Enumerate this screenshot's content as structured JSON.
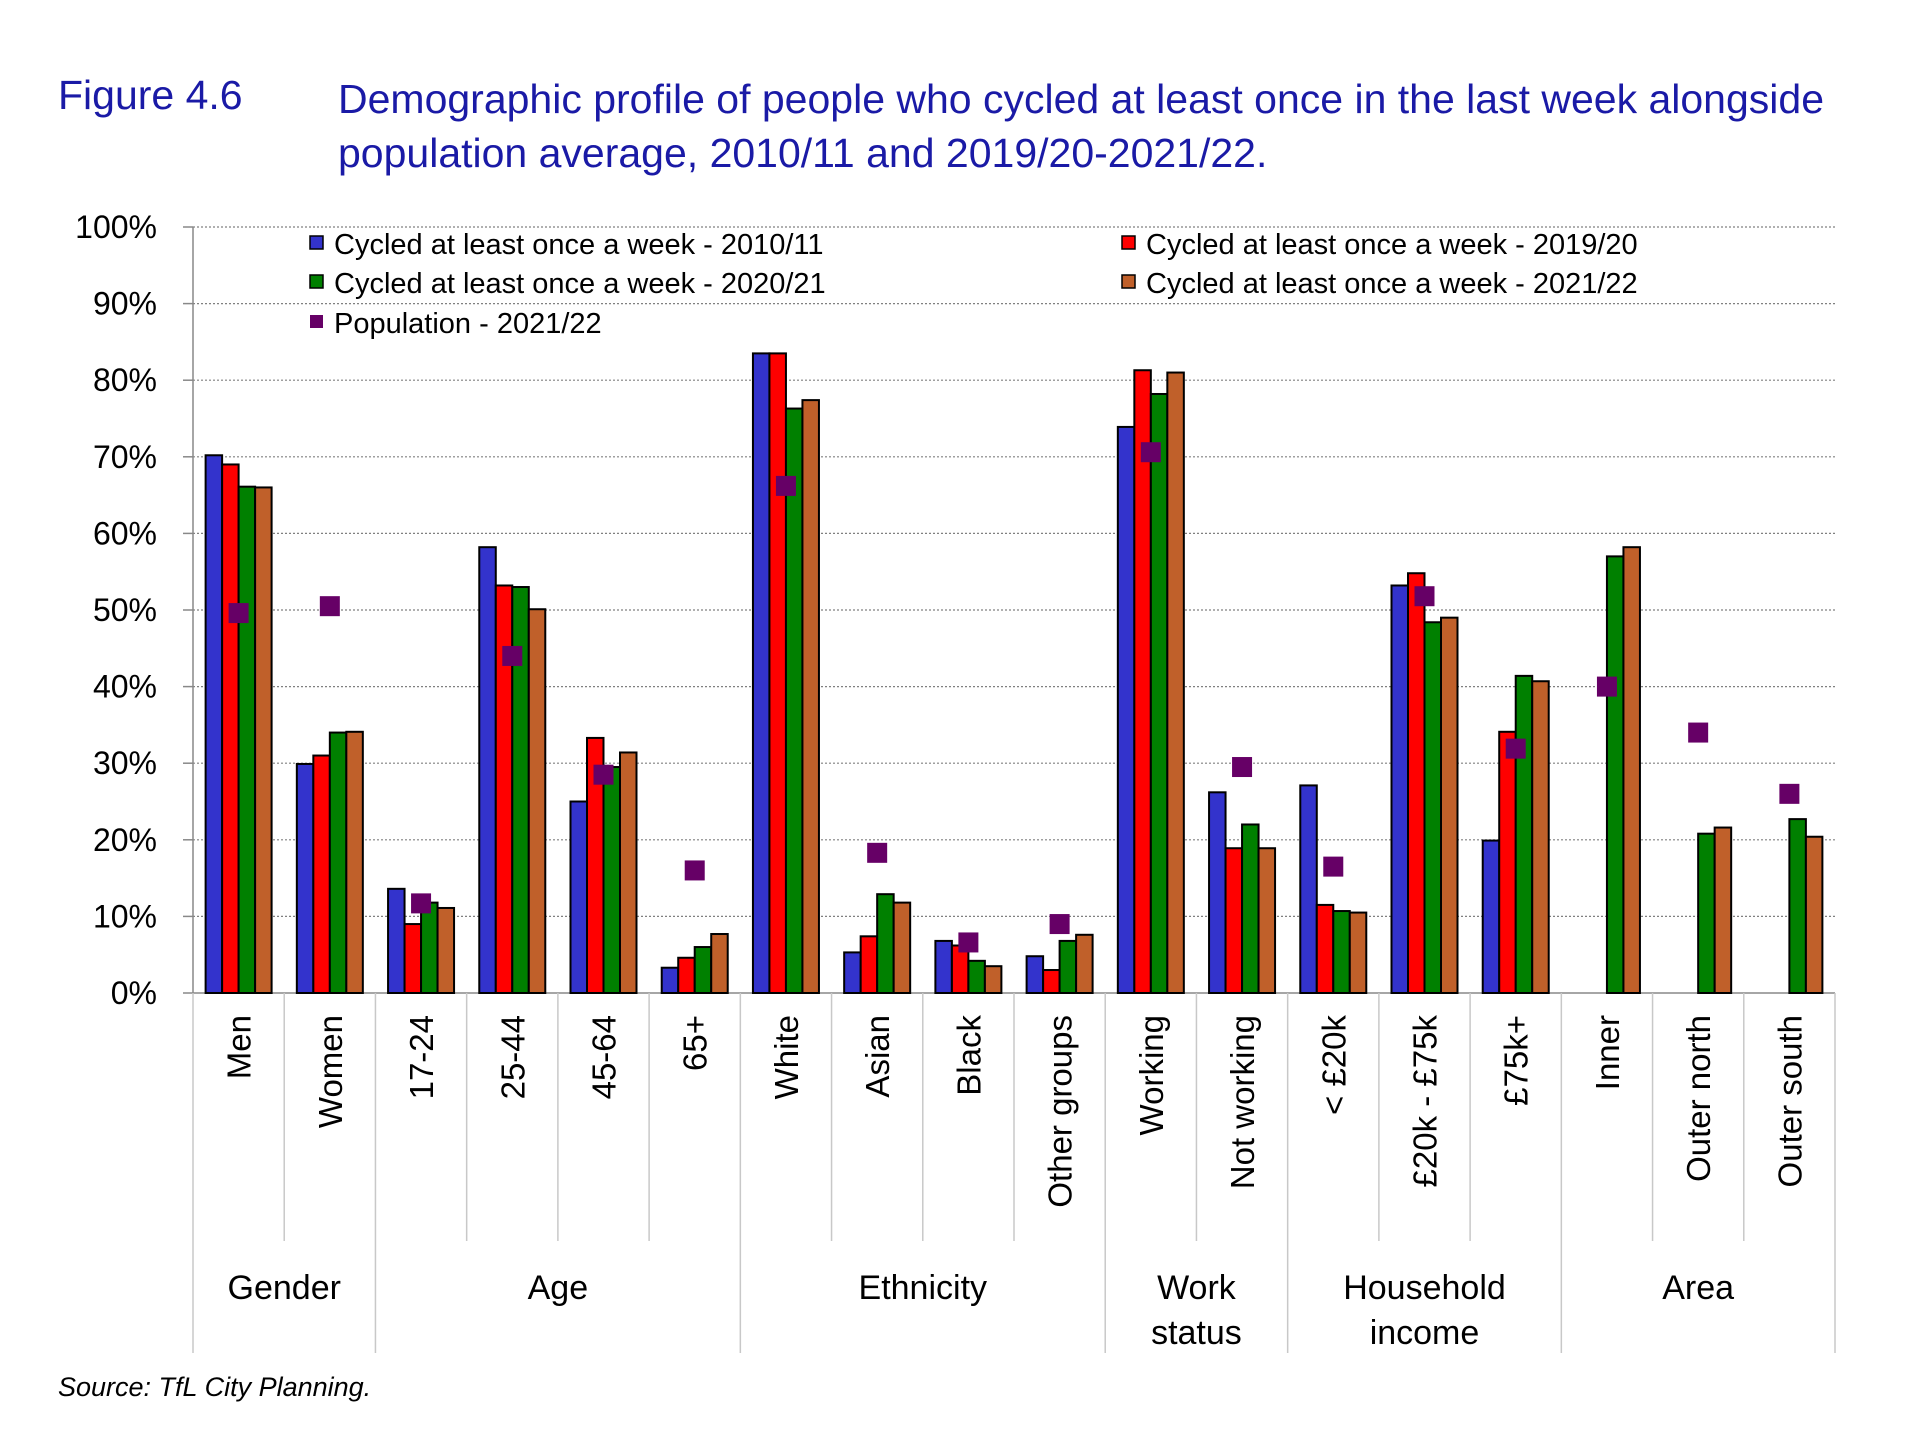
{
  "figure_number": "Figure 4.6",
  "title": "Demographic profile of people who cycled at least once in the last week alongside population average, 2010/11 and 2019/20-2021/22.",
  "source": "Source: TfL City Planning.",
  "chart_data": {
    "type": "bar",
    "ylim": [
      0,
      100
    ],
    "yticks": [
      "0%",
      "10%",
      "20%",
      "30%",
      "40%",
      "50%",
      "60%",
      "70%",
      "80%",
      "90%",
      "100%"
    ],
    "grid": true,
    "legend_position": "top",
    "categories": [
      "Men",
      "Women",
      "17-24",
      "25-44",
      "45-64",
      "65+",
      "White",
      "Asian",
      "Black",
      "Other groups",
      "Working",
      "Not working",
      "< £20k",
      "£20k - £75k",
      "£75k+",
      "Inner",
      "Outer north",
      "Outer south"
    ],
    "groups": [
      {
        "label": "Gender",
        "span": 2
      },
      {
        "label": "Age",
        "span": 4
      },
      {
        "label": "Ethnicity",
        "span": 4
      },
      {
        "label": "Work status",
        "span": 2
      },
      {
        "label": "Household income",
        "span": 3
      },
      {
        "label": "Area",
        "span": 3
      }
    ],
    "series": [
      {
        "name": "Cycled at least once a week - 2010/11",
        "color": "#3333cc",
        "type": "bar",
        "values": [
          70.2,
          29.9,
          13.6,
          58.2,
          25.0,
          3.3,
          83.5,
          5.3,
          6.8,
          4.8,
          73.9,
          26.2,
          27.1,
          53.2,
          19.9,
          null,
          null,
          null
        ]
      },
      {
        "name": "Cycled at least once a week - 2019/20",
        "color": "#ff0000",
        "type": "bar",
        "values": [
          69.0,
          31.0,
          9.0,
          53.2,
          33.3,
          4.6,
          83.5,
          7.4,
          6.2,
          3.0,
          81.3,
          18.9,
          11.5,
          54.8,
          34.1,
          null,
          null,
          null
        ]
      },
      {
        "name": "Cycled at least once a week - 2020/21",
        "color": "#008000",
        "type": "bar",
        "values": [
          66.1,
          34.0,
          11.8,
          53.0,
          29.5,
          6.0,
          76.3,
          12.9,
          4.2,
          6.8,
          78.2,
          22.0,
          10.7,
          48.4,
          41.4,
          57.0,
          20.8,
          22.7
        ]
      },
      {
        "name": "Cycled at least once a week - 2021/22",
        "color": "#c0602a",
        "type": "bar",
        "values": [
          66.0,
          34.1,
          11.1,
          50.1,
          31.4,
          7.7,
          77.4,
          11.8,
          3.5,
          7.6,
          81.0,
          18.9,
          10.5,
          49.0,
          40.7,
          58.2,
          21.6,
          20.4
        ]
      },
      {
        "name": "Population - 2021/22",
        "color": "#660066",
        "type": "marker",
        "values": [
          49.6,
          50.5,
          11.7,
          44.0,
          28.5,
          16.0,
          66.2,
          18.3,
          6.6,
          9.0,
          70.6,
          29.5,
          16.5,
          51.8,
          31.9,
          40.0,
          34.0,
          26.0
        ]
      }
    ]
  }
}
